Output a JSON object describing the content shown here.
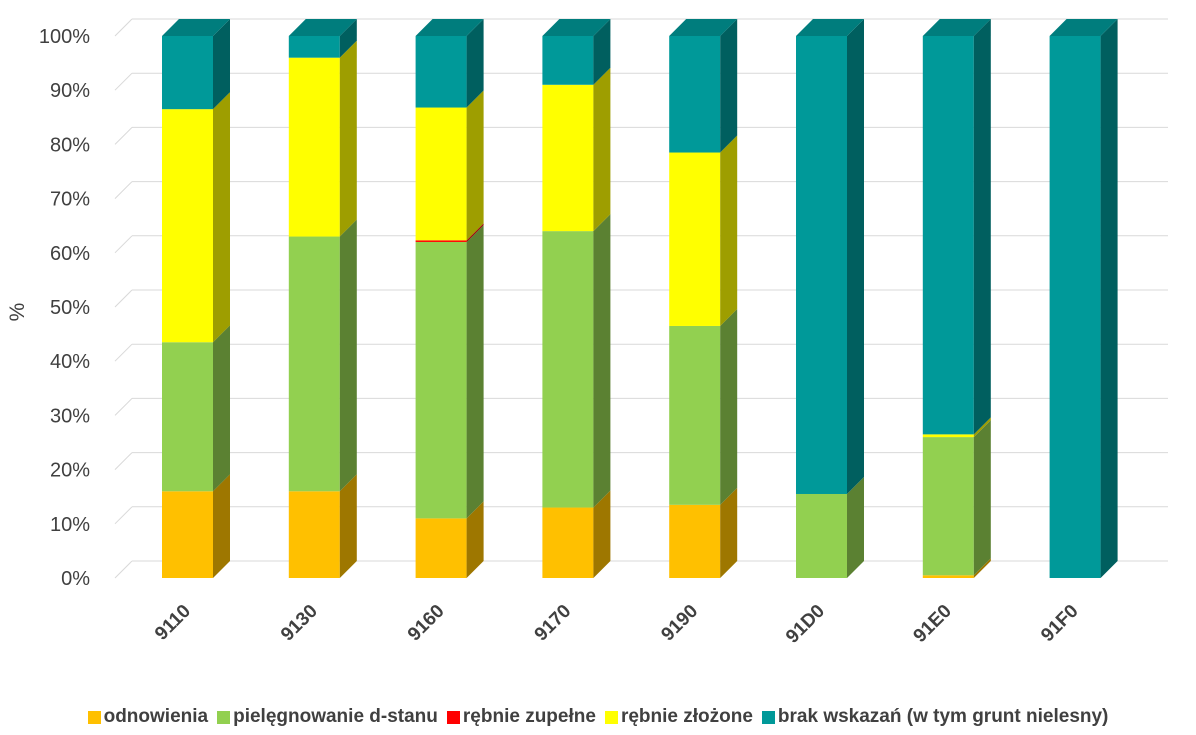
{
  "chart_data": {
    "type": "bar",
    "stacked": true,
    "percent_stacked": true,
    "three_d": true,
    "ylabel": "%",
    "xlabel": "",
    "ylim": [
      0,
      100
    ],
    "yticks": [
      "0%",
      "10%",
      "20%",
      "30%",
      "40%",
      "50%",
      "60%",
      "70%",
      "80%",
      "90%",
      "100%"
    ],
    "grid": true,
    "legend_position": "bottom",
    "categories": [
      "9110",
      "9130",
      "9160",
      "9170",
      "9190",
      "91D0",
      "91E0",
      "91F0"
    ],
    "series": [
      {
        "name": "odnowienia",
        "color": "#FFC000",
        "values": [
          16,
          16,
          11,
          13,
          13.5,
          0,
          0.5,
          0
        ]
      },
      {
        "name": "pielęgnowanie d-stanu",
        "color": "#92D050",
        "values": [
          27.5,
          47,
          51,
          51,
          33,
          15.5,
          25.5,
          0
        ]
      },
      {
        "name": "rębnie zupełne",
        "color": "#FF0000",
        "values": [
          0,
          0,
          0.3,
          0,
          0,
          0,
          0,
          0
        ]
      },
      {
        "name": "rębnie złożone",
        "color": "#FFFF00",
        "values": [
          43,
          33,
          24.5,
          27,
          32,
          0,
          0.5,
          0
        ]
      },
      {
        "name": "brak wskazań (w tym grunt nielesny)",
        "color": "#009999",
        "values": [
          13.5,
          4,
          13.2,
          9,
          21.5,
          84.5,
          73.5,
          100
        ]
      }
    ]
  }
}
